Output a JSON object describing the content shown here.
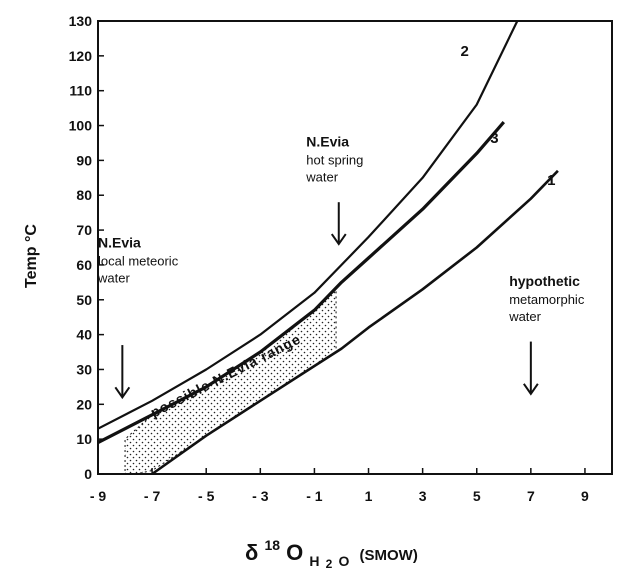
{
  "chart_data": {
    "type": "line",
    "xlabel": "δ18OH2O (SMOW)",
    "xlabel_parts": {
      "delta": "δ",
      "sup": "18",
      "o": "O",
      "sub": "H",
      "sub2": "2",
      "o2": "O",
      "tail": "(SMOW)"
    },
    "ylabel": "Temp °C",
    "xlim": [
      -9,
      10
    ],
    "ylim": [
      0,
      130
    ],
    "xticks": [
      "- 9",
      "- 7",
      "- 5",
      "- 3",
      "- 1",
      "1",
      "3",
      "5",
      "7",
      "9"
    ],
    "yticks": [
      "0",
      "10",
      "20",
      "30",
      "40",
      "50",
      "60",
      "70",
      "80",
      "90",
      "100",
      "110",
      "120",
      "130"
    ],
    "series": [
      {
        "name": "2",
        "x": [
          -9,
          -7,
          -5,
          -3,
          -1,
          0,
          1,
          3,
          5,
          6.5
        ],
        "y": [
          13,
          21,
          30,
          40,
          52,
          60,
          68,
          85,
          106,
          130
        ]
      },
      {
        "name": "3",
        "x": [
          -9,
          -7,
          -5,
          -3,
          -1,
          0,
          1,
          3,
          5,
          6
        ],
        "y": [
          9,
          17,
          25,
          35,
          47,
          55,
          62,
          76,
          92,
          101
        ]
      },
      {
        "name": "1",
        "x": [
          -7,
          -5,
          -3,
          -1,
          0,
          1,
          3,
          5,
          7,
          8
        ],
        "y": [
          0,
          11,
          21,
          31,
          36,
          42,
          53,
          65,
          79,
          87
        ]
      }
    ],
    "range_region": {
      "label": "possible N.Evia range",
      "polygon": [
        [
          -8,
          2
        ],
        [
          -8,
          10
        ],
        [
          -7,
          17
        ],
        [
          -5,
          25
        ],
        [
          -3,
          35
        ],
        [
          -1,
          47
        ],
        [
          -0.2,
          53
        ],
        [
          -0.2,
          35
        ],
        [
          -1,
          31
        ],
        [
          -3,
          21
        ],
        [
          -5,
          11
        ],
        [
          -7,
          1
        ],
        [
          -7.6,
          0
        ],
        [
          -8,
          0
        ]
      ]
    },
    "annotations": [
      {
        "title": "N.Evia",
        "lines": [
          "local meteoric",
          "water"
        ],
        "arrow_x": -8.1,
        "arrow_y_top": 37,
        "arrow_y_bottom": 22
      },
      {
        "title": "N.Evia",
        "lines": [
          "hot spring",
          "water"
        ],
        "arrow_x": -0.1,
        "arrow_y_top": 78,
        "arrow_y_bottom": 66
      },
      {
        "title": "hypothetic",
        "lines": [
          "metamorphic",
          "water"
        ],
        "arrow_x": 7,
        "arrow_y_top": 38,
        "arrow_y_bottom": 23
      }
    ]
  }
}
